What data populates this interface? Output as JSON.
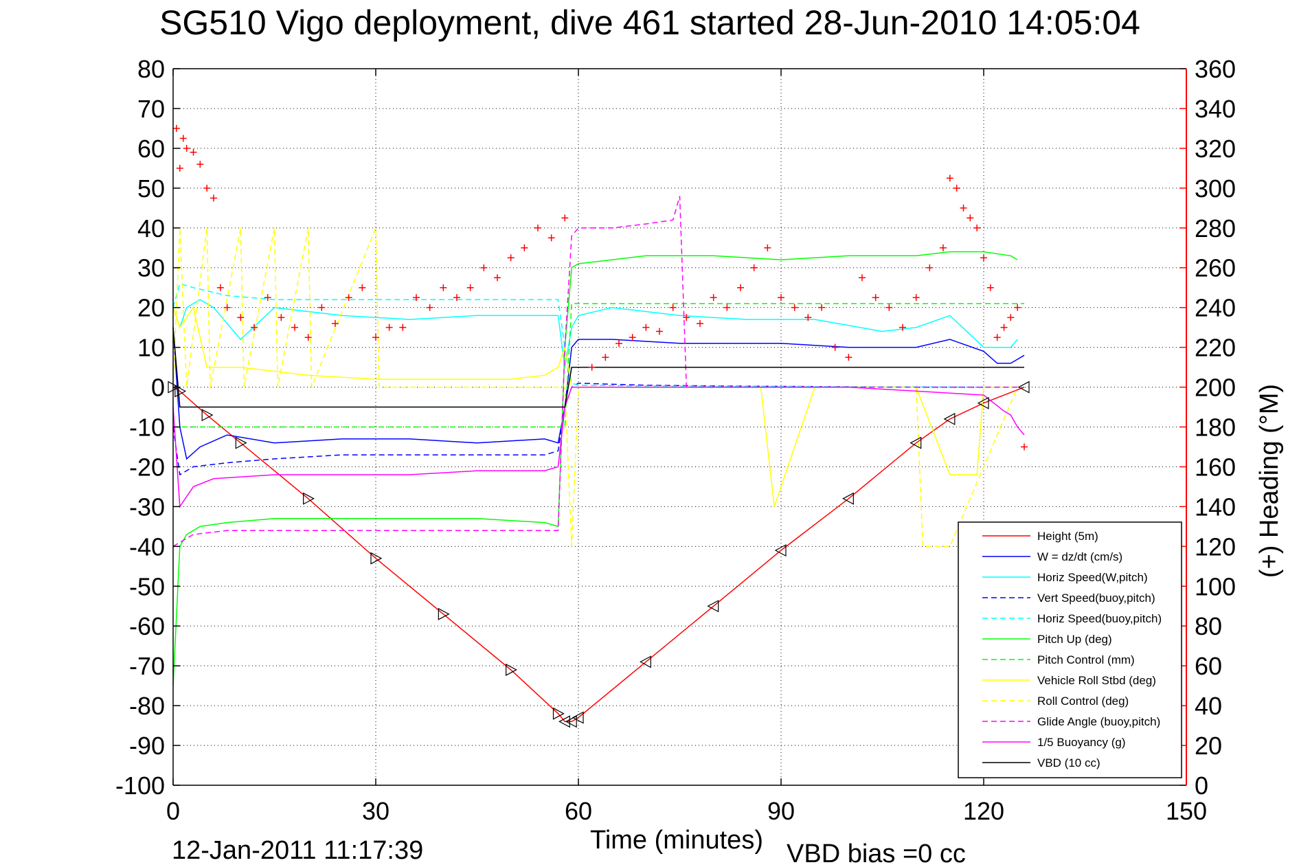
{
  "chart_data": {
    "type": "line",
    "title": "SG510 Vigo deployment, dive 461 started 28-Jun-2010 14:05:04",
    "xlabel": "Time (minutes)",
    "ylabel": "",
    "y2label": "(+) Heading (°M)",
    "footer_left": "12-Jan-2011 11:17:39",
    "footer_right": "VBD bias =0 cc",
    "xlim": [
      0,
      150
    ],
    "ylim": [
      -100,
      80
    ],
    "y2lim": [
      0,
      360
    ],
    "xticks": [
      "0",
      "30",
      "60",
      "90",
      "120",
      "150"
    ],
    "yticks": [
      "80",
      "70",
      "60",
      "50",
      "40",
      "30",
      "20",
      "10",
      "0",
      "-10",
      "-20",
      "-30",
      "-40",
      "-50",
      "-60",
      "-70",
      "-80",
      "-90",
      "-100"
    ],
    "y2ticks": [
      "360",
      "340",
      "320",
      "300",
      "280",
      "260",
      "240",
      "220",
      "200",
      "180",
      "160",
      "140",
      "120",
      "100",
      "80",
      "60",
      "40",
      "20",
      "0"
    ],
    "grid": true,
    "legend_position": "bottom-right",
    "colors": {
      "axis_right": "#ff0000",
      "grid": "#000000"
    },
    "series": [
      {
        "name": "Height (5m)",
        "color": "#ff0000",
        "style": "solid",
        "x": [
          0,
          1,
          5,
          10,
          20,
          30,
          40,
          50,
          57,
          58,
          59,
          60,
          70,
          80,
          90,
          100,
          110,
          115,
          120,
          126
        ],
        "y": [
          0,
          -1,
          -7,
          -14,
          -28,
          -43,
          -57,
          -71,
          -82,
          -84,
          -84,
          -83,
          -69,
          -55,
          -41,
          -28,
          -14,
          -8,
          -4,
          0
        ]
      },
      {
        "name": "W = dz/dt (cm/s)",
        "color": "#0000ff",
        "style": "solid",
        "x": [
          0,
          1,
          2,
          4,
          8,
          15,
          25,
          35,
          45,
          55,
          57,
          58,
          59,
          60,
          65,
          75,
          85,
          90,
          100,
          110,
          115,
          120,
          122,
          124,
          125,
          126
        ],
        "y": [
          15,
          -10,
          -18,
          -15,
          -12,
          -14,
          -13,
          -13,
          -14,
          -13,
          -14,
          -5,
          10,
          12,
          12,
          11,
          11,
          11,
          10,
          10,
          12,
          9,
          6,
          6,
          7,
          8
        ]
      },
      {
        "name": "Horiz Speed(W,pitch)",
        "color": "#00ffff",
        "style": "solid",
        "x": [
          0,
          1,
          2,
          4,
          6,
          10,
          15,
          25,
          35,
          45,
          55,
          57,
          58,
          59,
          60,
          65,
          75,
          85,
          95,
          105,
          110,
          115,
          120,
          124,
          125
        ],
        "y": [
          20,
          15,
          20,
          22,
          20,
          12,
          20,
          18,
          17,
          18,
          18,
          18,
          5,
          15,
          18,
          20,
          18,
          17,
          17,
          14,
          15,
          18,
          10,
          10,
          12
        ]
      },
      {
        "name": "Vert Speed(buoy,pitch)",
        "color": "#0000ff",
        "style": "dashed",
        "x": [
          0,
          1,
          3,
          8,
          15,
          25,
          35,
          45,
          55,
          57,
          58,
          59,
          60,
          70,
          80,
          90,
          100,
          110,
          120,
          125
        ],
        "y": [
          -10,
          -22,
          -20,
          -19,
          -18,
          -17,
          -17,
          -17,
          -17,
          -16,
          -5,
          0,
          1,
          0.5,
          0.3,
          0.2,
          0.1,
          0,
          0,
          0
        ]
      },
      {
        "name": "Horiz Speed(buoy,pitch)",
        "color": "#00ffff",
        "style": "dashed",
        "x": [
          0,
          1,
          3,
          8,
          15,
          25,
          35,
          45,
          55,
          57,
          58,
          59,
          60,
          70,
          80,
          90,
          100,
          110,
          120,
          125
        ],
        "y": [
          20,
          26,
          25,
          23,
          22,
          22,
          22,
          22,
          22,
          22,
          10,
          1,
          0.5,
          0.3,
          0.2,
          0.2,
          0.1,
          0.1,
          0,
          0
        ]
      },
      {
        "name": "Pitch Up (deg)",
        "color": "#00ff00",
        "style": "solid",
        "x": [
          0,
          1,
          2,
          4,
          8,
          15,
          25,
          35,
          45,
          55,
          57,
          58,
          59,
          60,
          70,
          80,
          90,
          100,
          110,
          115,
          120,
          124,
          125
        ],
        "y": [
          -75,
          -40,
          -37,
          -35,
          -34,
          -33,
          -33,
          -33,
          -33,
          -34,
          -35,
          10,
          30,
          31,
          33,
          33,
          32,
          33,
          33,
          34,
          34,
          33,
          32
        ]
      },
      {
        "name": "Pitch Control (mm)",
        "color": "#00ff00",
        "style": "dashed",
        "x": [
          0,
          1,
          58,
          59,
          126
        ],
        "y": [
          -10,
          -10,
          -10,
          21,
          21
        ]
      },
      {
        "name": "Vehicle Roll Stbd (deg)",
        "color": "#ffff00",
        "style": "solid",
        "x": [
          0,
          1,
          3,
          5,
          10,
          20,
          30,
          40,
          50,
          55,
          57,
          58,
          59,
          60,
          70,
          80,
          87,
          89,
          95,
          100,
          110,
          115,
          119,
          120,
          125
        ],
        "y": [
          20,
          15,
          20,
          5,
          5,
          3,
          2,
          2,
          2,
          3,
          5,
          10,
          0,
          0,
          0,
          0,
          0,
          -30,
          0,
          0,
          0,
          -22,
          -22,
          0,
          0
        ]
      },
      {
        "name": "Roll Control (deg)",
        "color": "#ffff00",
        "style": "dashed",
        "x": [
          0,
          1,
          2,
          5,
          5.5,
          10,
          10.5,
          15,
          15.5,
          20,
          20.5,
          30,
          30.5,
          40,
          58,
          59,
          60,
          80,
          100,
          110,
          111,
          115,
          125
        ],
        "y": [
          0,
          40,
          0,
          40,
          0,
          40,
          0,
          40,
          0,
          40,
          0,
          40,
          0,
          0,
          0,
          -40,
          0,
          0,
          0,
          0,
          -40,
          -40,
          0
        ]
      },
      {
        "name": "Glide Angle (buoy,pitch)",
        "color": "#ff00ff",
        "style": "dashed",
        "x": [
          0,
          1,
          3,
          8,
          15,
          25,
          35,
          45,
          55,
          57,
          58,
          59,
          60,
          65,
          70,
          74,
          75,
          76,
          80,
          100,
          125
        ],
        "y": [
          -40,
          -39,
          -37,
          -36,
          -36,
          -36,
          -36,
          -36,
          -36,
          -36,
          10,
          38,
          40,
          40,
          41,
          42,
          48,
          0,
          0,
          0,
          0
        ]
      },
      {
        "name": "1/5 Buoyancy (g)",
        "color": "#ff00ff",
        "style": "solid",
        "x": [
          0,
          1,
          3,
          6,
          15,
          25,
          35,
          45,
          55,
          57,
          58,
          59,
          60,
          70,
          80,
          90,
          100,
          110,
          120,
          123,
          124,
          125,
          126
        ],
        "y": [
          -5,
          -30,
          -25,
          -23,
          -22,
          -22,
          -22,
          -21,
          -21,
          -20,
          -5,
          0,
          0,
          0,
          0,
          0,
          0,
          -1,
          -2,
          -6,
          -7,
          -10,
          -12
        ]
      },
      {
        "name": "VBD (10 cc)",
        "color": "#000000",
        "style": "solid",
        "x": [
          0,
          1,
          2,
          57,
          58,
          59,
          60,
          125,
          126
        ],
        "y": [
          15,
          -5,
          -5,
          -5,
          -5,
          5,
          5,
          5,
          5
        ]
      }
    ],
    "heading_series": {
      "name": "(+) Heading (°M)",
      "color": "#ff0000",
      "marker": "+",
      "x": [
        0.5,
        1,
        1.5,
        2,
        3,
        4,
        5,
        6,
        7,
        8,
        10,
        12,
        14,
        16,
        18,
        20,
        22,
        24,
        26,
        28,
        30,
        32,
        34,
        36,
        38,
        40,
        42,
        44,
        46,
        48,
        50,
        52,
        54,
        56,
        58,
        62,
        64,
        66,
        68,
        70,
        72,
        74,
        76,
        78,
        80,
        82,
        84,
        86,
        88,
        90,
        92,
        94,
        96,
        98,
        100,
        102,
        104,
        106,
        108,
        110,
        112,
        114,
        115,
        116,
        117,
        118,
        119,
        120,
        121,
        122,
        123,
        124,
        125,
        126
      ],
      "y": [
        330,
        310,
        325,
        320,
        318,
        312,
        300,
        295,
        250,
        240,
        235,
        230,
        245,
        235,
        230,
        225,
        240,
        232,
        245,
        250,
        225,
        230,
        230,
        245,
        240,
        250,
        245,
        250,
        260,
        255,
        265,
        270,
        280,
        275,
        285,
        210,
        215,
        222,
        225,
        230,
        228,
        240,
        235,
        232,
        245,
        240,
        250,
        260,
        270,
        245,
        240,
        235,
        240,
        220,
        215,
        255,
        245,
        240,
        230,
        245,
        260,
        270,
        305,
        300,
        290,
        285,
        280,
        265,
        250,
        225,
        230,
        235,
        240,
        170
      ]
    }
  }
}
